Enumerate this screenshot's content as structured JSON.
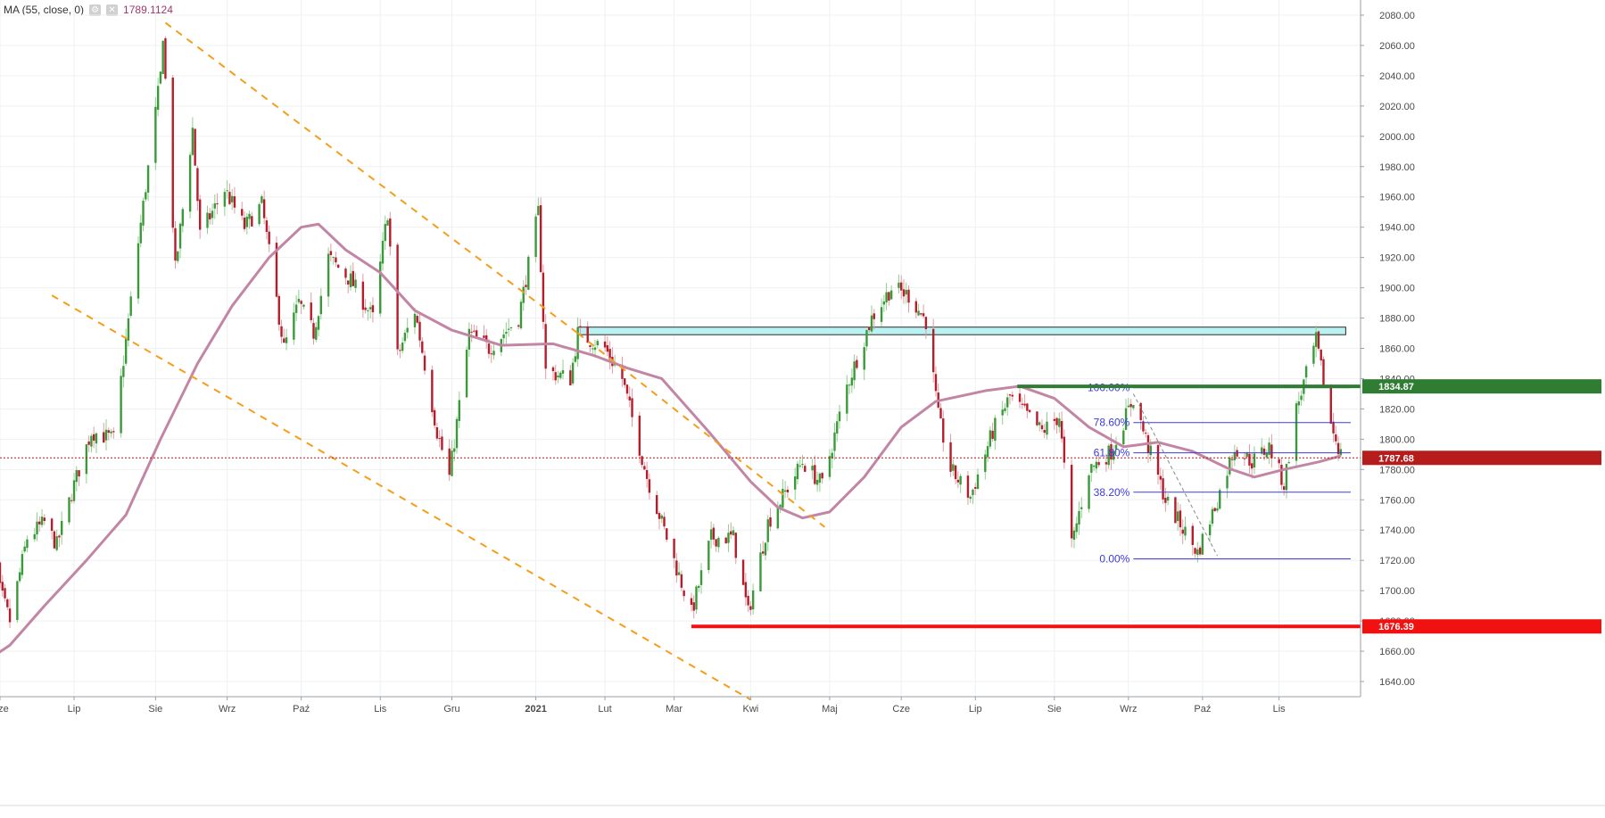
{
  "legend": {
    "indicator": "MA (55, close, 0)",
    "settings_icon": "gear-icon",
    "close_icon": "close-icon",
    "value": "1789.1124"
  },
  "chart_data": {
    "type": "candlestick",
    "ylim": [
      1630,
      2090
    ],
    "y_ticks": [
      1640,
      1660,
      1680,
      1700,
      1720,
      1740,
      1760,
      1780,
      1800,
      1820,
      1840,
      1860,
      1880,
      1900,
      1920,
      1940,
      1960,
      1980,
      2000,
      2020,
      2040,
      2060,
      2080
    ],
    "y_tick_labels": [
      "1640.00",
      "1660.00",
      "1680.00",
      "1700.00",
      "1720.00",
      "1740.00",
      "1760.00",
      "1780.00",
      "1800.00",
      "1820.00",
      "1840.00",
      "1860.00",
      "1880.00",
      "1900.00",
      "1920.00",
      "1940.00",
      "1960.00",
      "1980.00",
      "2000.00",
      "2020.00",
      "2040.00",
      "2060.00",
      "2080.00"
    ],
    "x_range": [
      "2020-06-01",
      "2021-12-04"
    ],
    "x_ticks": [
      {
        "date": "2020-06-01",
        "label": "Cze"
      },
      {
        "date": "2020-07-01",
        "label": "Lip"
      },
      {
        "date": "2020-08-03",
        "label": "Sie"
      },
      {
        "date": "2020-09-01",
        "label": "Wrz"
      },
      {
        "date": "2020-10-01",
        "label": "Paź"
      },
      {
        "date": "2020-11-02",
        "label": "Lis"
      },
      {
        "date": "2020-12-01",
        "label": "Gru"
      },
      {
        "date": "2021-01-04",
        "label": "2021",
        "bold": true
      },
      {
        "date": "2021-02-01",
        "label": "Lut"
      },
      {
        "date": "2021-03-01",
        "label": "Mar"
      },
      {
        "date": "2021-04-01",
        "label": "Kwi"
      },
      {
        "date": "2021-05-03",
        "label": "Maj"
      },
      {
        "date": "2021-06-01",
        "label": "Cze"
      },
      {
        "date": "2021-07-01",
        "label": "Lip"
      },
      {
        "date": "2021-08-02",
        "label": "Sie"
      },
      {
        "date": "2021-09-01",
        "label": "Wrz"
      },
      {
        "date": "2021-10-01",
        "label": "Paź"
      },
      {
        "date": "2021-11-01",
        "label": "Lis"
      }
    ],
    "price_path": [
      [
        "2020-05-25",
        1735
      ],
      [
        "2020-06-05",
        1680
      ],
      [
        "2020-06-12",
        1735
      ],
      [
        "2020-06-19",
        1745
      ],
      [
        "2020-06-24",
        1730
      ],
      [
        "2020-07-01",
        1770
      ],
      [
        "2020-07-08",
        1805
      ],
      [
        "2020-07-17",
        1800
      ],
      [
        "2020-07-27",
        1930
      ],
      [
        "2020-08-05",
        2040
      ],
      [
        "2020-08-06",
        2068
      ],
      [
        "2020-08-11",
        1912
      ],
      [
        "2020-08-18",
        2005
      ],
      [
        "2020-08-21",
        1935
      ],
      [
        "2020-08-31",
        1965
      ],
      [
        "2020-09-08",
        1940
      ],
      [
        "2020-09-15",
        1955
      ],
      [
        "2020-09-24",
        1860
      ],
      [
        "2020-09-30",
        1890
      ],
      [
        "2020-10-06",
        1870
      ],
      [
        "2020-10-12",
        1920
      ],
      [
        "2020-10-21",
        1905
      ],
      [
        "2020-10-30",
        1880
      ],
      [
        "2020-11-05",
        1950
      ],
      [
        "2020-11-09",
        1855
      ],
      [
        "2020-11-16",
        1885
      ],
      [
        "2020-11-25",
        1805
      ],
      [
        "2020-11-30",
        1775
      ],
      [
        "2020-12-08",
        1870
      ],
      [
        "2020-12-16",
        1860
      ],
      [
        "2020-12-28",
        1880
      ],
      [
        "2021-01-05",
        1950
      ],
      [
        "2021-01-08",
        1845
      ],
      [
        "2021-01-18",
        1840
      ],
      [
        "2021-01-21",
        1870
      ],
      [
        "2021-02-01",
        1860
      ],
      [
        "2021-02-08",
        1840
      ],
      [
        "2021-02-18",
        1775
      ],
      [
        "2021-02-26",
        1735
      ],
      [
        "2021-03-08",
        1685
      ],
      [
        "2021-03-16",
        1735
      ],
      [
        "2021-03-25",
        1735
      ],
      [
        "2021-03-31",
        1685
      ],
      [
        "2021-04-08",
        1745
      ],
      [
        "2021-04-22",
        1785
      ],
      [
        "2021-04-30",
        1770
      ],
      [
        "2021-05-10",
        1835
      ],
      [
        "2021-05-20",
        1880
      ],
      [
        "2021-05-28",
        1900
      ],
      [
        "2021-06-04",
        1895
      ],
      [
        "2021-06-11",
        1878
      ],
      [
        "2021-06-16",
        1815
      ],
      [
        "2021-06-21",
        1780
      ],
      [
        "2021-06-29",
        1762
      ],
      [
        "2021-07-08",
        1805
      ],
      [
        "2021-07-15",
        1828
      ],
      [
        "2021-07-28",
        1805
      ],
      [
        "2021-08-04",
        1815
      ],
      [
        "2021-08-09",
        1730
      ],
      [
        "2021-08-16",
        1780
      ],
      [
        "2021-08-25",
        1792
      ],
      [
        "2021-09-03",
        1827
      ],
      [
        "2021-09-09",
        1795
      ],
      [
        "2021-09-16",
        1760
      ],
      [
        "2021-09-29",
        1725
      ],
      [
        "2021-10-07",
        1760
      ],
      [
        "2021-10-14",
        1795
      ],
      [
        "2021-10-21",
        1785
      ],
      [
        "2021-10-28",
        1795
      ],
      [
        "2021-11-03",
        1770
      ],
      [
        "2021-11-08",
        1820
      ],
      [
        "2021-11-16",
        1865
      ],
      [
        "2021-11-22",
        1810
      ],
      [
        "2021-11-26",
        1790
      ]
    ],
    "moving_average": {
      "name": "MA (55, close, 0)",
      "color": "#c286a4",
      "points": [
        [
          "2020-05-25",
          1652
        ],
        [
          "2020-06-05",
          1664
        ],
        [
          "2020-06-19",
          1690
        ],
        [
          "2020-07-06",
          1720
        ],
        [
          "2020-07-22",
          1750
        ],
        [
          "2020-08-05",
          1800
        ],
        [
          "2020-08-20",
          1850
        ],
        [
          "2020-09-03",
          1888
        ],
        [
          "2020-09-18",
          1920
        ],
        [
          "2020-10-01",
          1940
        ],
        [
          "2020-10-08",
          1942
        ],
        [
          "2020-10-19",
          1925
        ],
        [
          "2020-11-02",
          1910
        ],
        [
          "2020-11-16",
          1885
        ],
        [
          "2020-12-01",
          1872
        ],
        [
          "2020-12-21",
          1862
        ],
        [
          "2021-01-11",
          1863
        ],
        [
          "2021-01-28",
          1855
        ],
        [
          "2021-02-10",
          1847
        ],
        [
          "2021-02-24",
          1840
        ],
        [
          "2021-03-15",
          1805
        ],
        [
          "2021-04-01",
          1772
        ],
        [
          "2021-04-12",
          1755
        ],
        [
          "2021-04-22",
          1748
        ],
        [
          "2021-05-03",
          1752
        ],
        [
          "2021-05-17",
          1775
        ],
        [
          "2021-06-01",
          1808
        ],
        [
          "2021-06-15",
          1825
        ],
        [
          "2021-07-05",
          1832
        ],
        [
          "2021-07-19",
          1835
        ],
        [
          "2021-08-02",
          1827
        ],
        [
          "2021-08-16",
          1808
        ],
        [
          "2021-08-30",
          1795
        ],
        [
          "2021-09-13",
          1798
        ],
        [
          "2021-09-27",
          1792
        ],
        [
          "2021-10-11",
          1781
        ],
        [
          "2021-10-22",
          1775
        ],
        [
          "2021-11-03",
          1780
        ],
        [
          "2021-11-17",
          1785
        ],
        [
          "2021-11-26",
          1789
        ]
      ]
    },
    "channel_lines": [
      {
        "from": [
          "2020-08-07",
          2075
        ],
        "to": [
          "2021-01-21",
          1870
        ],
        "color": "#f59e1b",
        "style": "dashed"
      },
      {
        "from": [
          "2020-06-22",
          1895
        ],
        "to": [
          "2021-04-01",
          1628
        ],
        "color": "#f59e1b",
        "style": "dashed"
      },
      {
        "from": [
          "2021-01-21",
          1870
        ],
        "to": [
          "2021-05-01",
          1742
        ],
        "color": "#f59e1b",
        "style": "dashed"
      }
    ],
    "resistance_zone": {
      "from": "2021-01-21",
      "to": "2021-11-28",
      "low": 1869,
      "high": 1874,
      "color": "#b9f2f2"
    },
    "horizontal_lines": [
      {
        "value": 1834.87,
        "from": "2021-07-18",
        "label": "1834.87",
        "color": "#2e7d32"
      },
      {
        "value": 1676.39,
        "from": "2021-03-08",
        "label": "1676.39",
        "color": "#f11111"
      },
      {
        "value": 1787.68,
        "label": "1787.68",
        "color": "#b71c1c",
        "style": "dotted"
      }
    ],
    "fibonacci": {
      "color": "#3b3bdf",
      "from": "2021-09-03",
      "to": "2021-11-30",
      "levels": [
        {
          "label": "100.00%",
          "value": 1834
        },
        {
          "label": "78.60%",
          "value": 1811
        },
        {
          "label": "61.80%",
          "value": 1791
        },
        {
          "label": "38.20%",
          "value": 1765
        },
        {
          "label": "0.00%",
          "value": 1721
        }
      ],
      "trend_line": {
        "from": [
          "2021-09-03",
          1830
        ],
        "to": [
          "2021-10-07",
          1723
        ]
      }
    }
  }
}
